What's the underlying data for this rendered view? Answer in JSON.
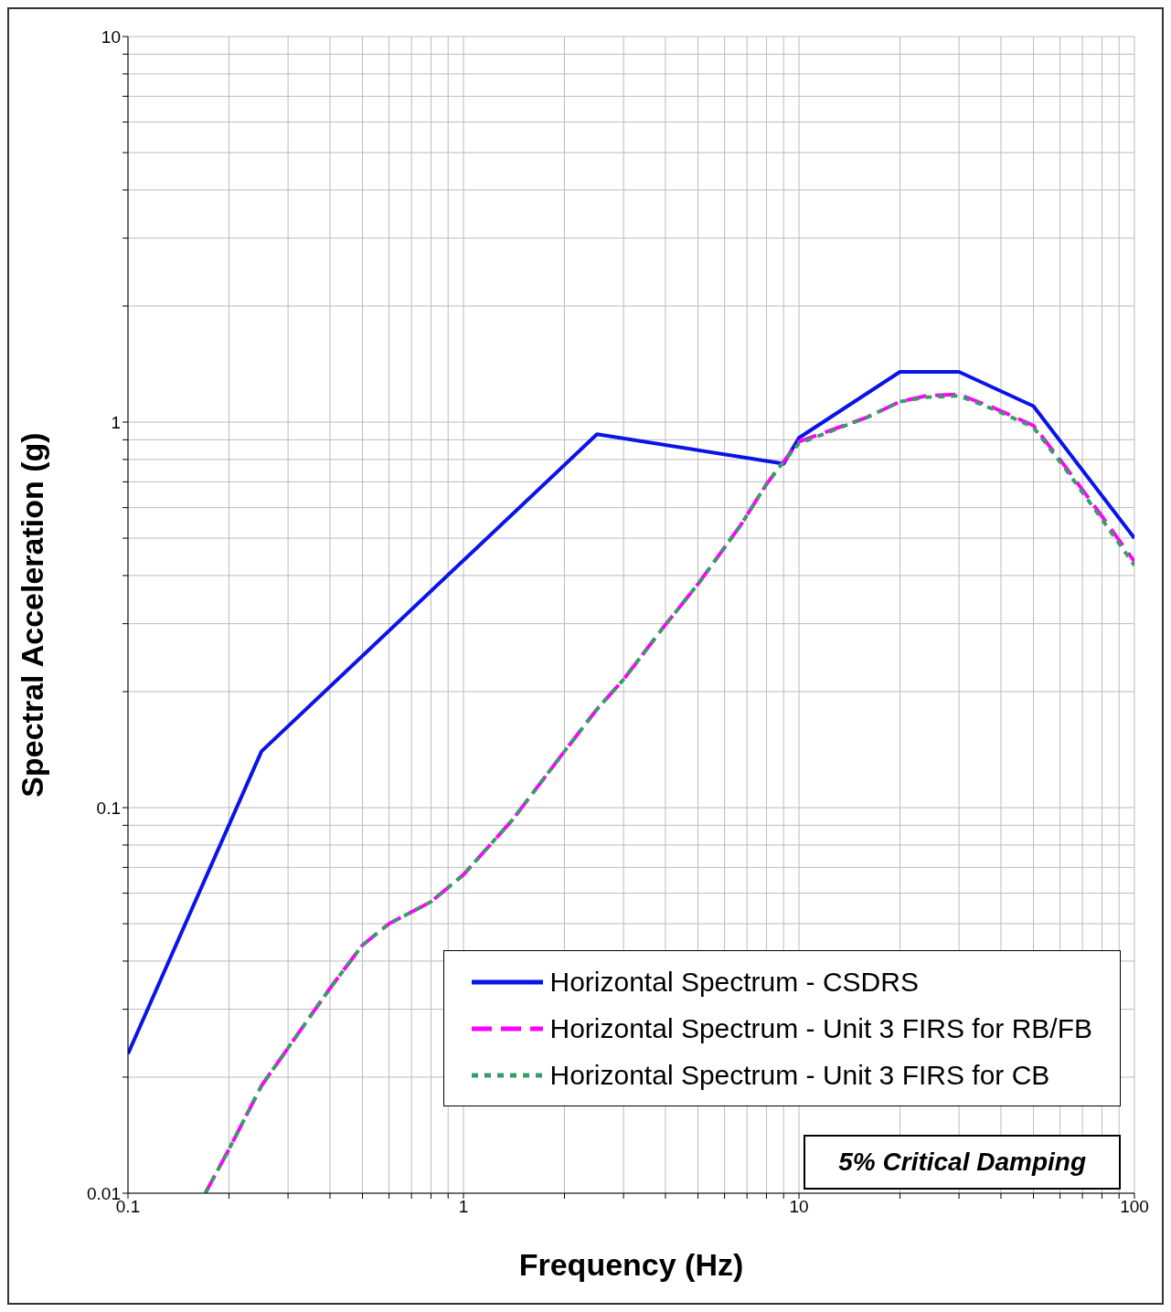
{
  "chart_data": {
    "type": "line",
    "xlabel": "Frequency (Hz)",
    "ylabel": "Spectral Acceleration (g)",
    "log": "xy",
    "grid": true,
    "legend": "bottom right",
    "marker": "none",
    "xlim": [
      0.1,
      100
    ],
    "ylim": [
      0.01,
      10
    ],
    "xticks": [
      0.1,
      {
        "value": 0.2,
        "label": null
      },
      {
        "value": 0.3,
        "label": null
      },
      {
        "value": 0.4,
        "label": null
      },
      {
        "value": 0.5,
        "label": null
      },
      {
        "value": 0.6,
        "label": null
      },
      {
        "value": 0.7,
        "label": null
      },
      {
        "value": 0.8,
        "label": null
      },
      {
        "value": 0.9,
        "label": null
      },
      1,
      {
        "value": 2,
        "label": null
      },
      {
        "value": 3,
        "label": null
      },
      {
        "value": 4,
        "label": null
      },
      {
        "value": 5,
        "label": null
      },
      {
        "value": 6,
        "label": null
      },
      {
        "value": 7,
        "label": null
      },
      {
        "value": 8,
        "label": null
      },
      {
        "value": 9,
        "label": null
      },
      10,
      {
        "value": 20,
        "label": null
      },
      {
        "value": 30,
        "label": null
      },
      {
        "value": 40,
        "label": null
      },
      {
        "value": 50,
        "label": null
      },
      {
        "value": 60,
        "label": null
      },
      {
        "value": 70,
        "label": null
      },
      {
        "value": 80,
        "label": null
      },
      {
        "value": 90,
        "label": null
      },
      100
    ],
    "yticks": [
      0.01,
      {
        "value": 0.02,
        "label": null
      },
      {
        "value": 0.03,
        "label": null
      },
      {
        "value": 0.04,
        "label": null
      },
      {
        "value": 0.05,
        "label": null
      },
      {
        "value": 0.06,
        "label": null
      },
      {
        "value": 0.07,
        "label": null
      },
      {
        "value": 0.08,
        "label": null
      },
      {
        "value": 0.09,
        "label": null
      },
      0.1,
      {
        "value": 0.2,
        "label": null
      },
      {
        "value": 0.3,
        "label": null
      },
      {
        "value": 0.4,
        "label": null
      },
      {
        "value": 0.5,
        "label": null
      },
      {
        "value": 0.6,
        "label": null
      },
      {
        "value": 0.7,
        "label": null
      },
      {
        "value": 0.8,
        "label": null
      },
      {
        "value": 0.9,
        "label": null
      },
      1,
      {
        "value": 2,
        "label": null
      },
      {
        "value": 3,
        "label": null
      },
      {
        "value": 4,
        "label": null
      },
      {
        "value": 5,
        "label": null
      },
      {
        "value": 6,
        "label": null
      },
      {
        "value": 7,
        "label": null
      },
      {
        "value": 8,
        "label": null
      },
      {
        "value": 9,
        "label": null
      },
      10
    ],
    "annotations": [
      "5% Critical Damping"
    ],
    "series": [
      {
        "name": "Horizontal Spectrum - CSDRS",
        "color": "#0a14e6",
        "line_style": "solid",
        "x": [
          0.1,
          0.25,
          2.5,
          9,
          10,
          20,
          30,
          50,
          100
        ],
        "values": [
          0.023,
          0.14,
          0.93,
          0.78,
          0.91,
          1.35,
          1.35,
          1.1,
          0.5
        ]
      },
      {
        "name": "Horizontal Spectrum - Unit 3 FIRS for RB/FB",
        "color": "#ff00ff",
        "line_style": "dashed",
        "x": [
          0.17,
          0.2,
          0.25,
          0.4,
          0.5,
          0.6,
          0.8,
          1,
          1.4,
          2,
          2.5,
          3,
          3.9,
          5,
          6.7,
          8,
          9,
          10,
          16,
          20,
          24,
          30,
          38,
          50,
          62,
          80,
          100
        ],
        "values": [
          0.01,
          0.013,
          0.019,
          0.034,
          0.044,
          0.05,
          0.057,
          0.067,
          0.093,
          0.14,
          0.18,
          0.215,
          0.29,
          0.38,
          0.54,
          0.69,
          0.79,
          0.89,
          1.03,
          1.13,
          1.17,
          1.18,
          1.09,
          0.98,
          0.77,
          0.57,
          0.435
        ]
      },
      {
        "name": "Horizontal Spectrum - Unit 3 FIRS for CB",
        "color": "#3a9a6a",
        "line_style": "dotted",
        "x": [
          0.17,
          0.2,
          0.25,
          0.4,
          0.5,
          0.6,
          0.8,
          1,
          1.4,
          2,
          2.5,
          3,
          3.9,
          5,
          6.7,
          8,
          9,
          10,
          16,
          20,
          24,
          30,
          38,
          50,
          62,
          80,
          100
        ],
        "values": [
          0.01,
          0.013,
          0.019,
          0.034,
          0.044,
          0.05,
          0.057,
          0.067,
          0.093,
          0.14,
          0.18,
          0.215,
          0.29,
          0.38,
          0.54,
          0.69,
          0.79,
          0.88,
          1.03,
          1.13,
          1.16,
          1.17,
          1.08,
          0.97,
          0.76,
          0.56,
          0.425
        ]
      }
    ]
  }
}
